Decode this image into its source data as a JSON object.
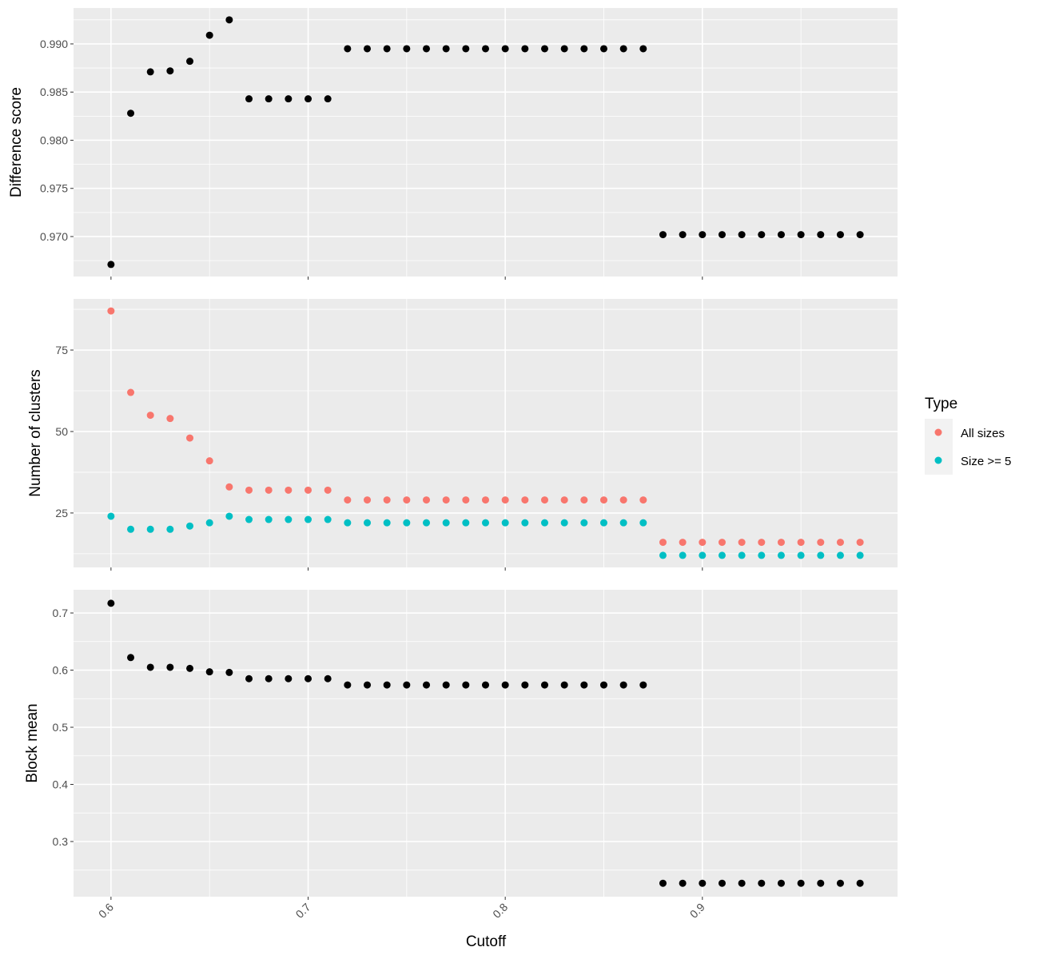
{
  "chart_data": {
    "type": "scatter",
    "xlabel": "Cutoff",
    "x": [
      0.6,
      0.61,
      0.62,
      0.63,
      0.64,
      0.65,
      0.66,
      0.67,
      0.68,
      0.69,
      0.7,
      0.71,
      0.72,
      0.73,
      0.74,
      0.75,
      0.76,
      0.77,
      0.78,
      0.79,
      0.8,
      0.81,
      0.82,
      0.83,
      0.84,
      0.85,
      0.86,
      0.87,
      0.88,
      0.89,
      0.9,
      0.91,
      0.92,
      0.93,
      0.94,
      0.95,
      0.96,
      0.97,
      0.98
    ],
    "xlim": [
      0.581,
      0.999
    ],
    "xticks": [
      0.6,
      0.7,
      0.8,
      0.9
    ],
    "xtick_labels": [
      "0.6",
      "0.7",
      "0.8",
      "0.9"
    ],
    "panels": [
      {
        "ylabel": "Difference score",
        "ylim": [
          0.96585,
          0.99373
        ],
        "yticks": [
          0.97,
          0.975,
          0.98,
          0.985,
          0.99
        ],
        "ytick_labels": [
          "0.970",
          "0.975",
          "0.980",
          "0.985",
          "0.990"
        ],
        "series": [
          {
            "name": "Difference score",
            "color": "#000000",
            "values": [
              0.9671,
              0.9828,
              0.9871,
              0.9872,
              0.9882,
              0.9909,
              0.9925,
              0.9843,
              0.9843,
              0.9843,
              0.9843,
              0.9843,
              0.9895,
              0.9895,
              0.9895,
              0.9895,
              0.9895,
              0.9895,
              0.9895,
              0.9895,
              0.9895,
              0.9895,
              0.9895,
              0.9895,
              0.9895,
              0.9895,
              0.9895,
              0.9895,
              0.9702,
              0.9702,
              0.9702,
              0.9702,
              0.9702,
              0.9702,
              0.9702,
              0.9702,
              0.9702,
              0.9702,
              0.9702
            ]
          }
        ]
      },
      {
        "ylabel": "Number of clusters",
        "ylim": [
          8.3,
          90.7
        ],
        "yticks": [
          25,
          50,
          75
        ],
        "ytick_labels": [
          "25",
          "50",
          "75"
        ],
        "series": [
          {
            "name": "All sizes",
            "color": "#F8766D",
            "values": [
              87,
              62,
              55,
              54,
              48,
              41,
              33,
              32,
              32,
              32,
              32,
              32,
              29,
              29,
              29,
              29,
              29,
              29,
              29,
              29,
              29,
              29,
              29,
              29,
              29,
              29,
              29,
              29,
              16,
              16,
              16,
              16,
              16,
              16,
              16,
              16,
              16,
              16,
              16
            ]
          },
          {
            "name": "Size >= 5",
            "color": "#00BFC4",
            "values": [
              24,
              20,
              20,
              20,
              21,
              22,
              24,
              23,
              23,
              23,
              23,
              23,
              22,
              22,
              22,
              22,
              22,
              22,
              22,
              22,
              22,
              22,
              22,
              22,
              22,
              22,
              22,
              22,
              12,
              12,
              12,
              12,
              12,
              12,
              12,
              12,
              12,
              12,
              12
            ]
          }
        ]
      },
      {
        "ylabel": "Block mean",
        "ylim": [
          0.2035,
          0.7406
        ],
        "yticks": [
          0.3,
          0.4,
          0.5,
          0.6,
          0.7
        ],
        "ytick_labels": [
          "0.3",
          "0.4",
          "0.5",
          "0.6",
          "0.7"
        ],
        "series": [
          {
            "name": "Block mean",
            "color": "#000000",
            "values": [
              0.717,
              0.622,
              0.605,
              0.605,
              0.603,
              0.597,
              0.596,
              0.585,
              0.585,
              0.585,
              0.585,
              0.585,
              0.574,
              0.574,
              0.574,
              0.574,
              0.574,
              0.574,
              0.574,
              0.574,
              0.574,
              0.574,
              0.574,
              0.574,
              0.574,
              0.574,
              0.574,
              0.574,
              0.227,
              0.227,
              0.227,
              0.227,
              0.227,
              0.227,
              0.227,
              0.227,
              0.227,
              0.227,
              0.227
            ]
          }
        ]
      }
    ],
    "legend": {
      "title": "Type",
      "position": "right",
      "entries": [
        {
          "label": "All sizes",
          "color": "#F8766D"
        },
        {
          "label": "Size >= 5",
          "color": "#00BFC4"
        }
      ]
    }
  }
}
